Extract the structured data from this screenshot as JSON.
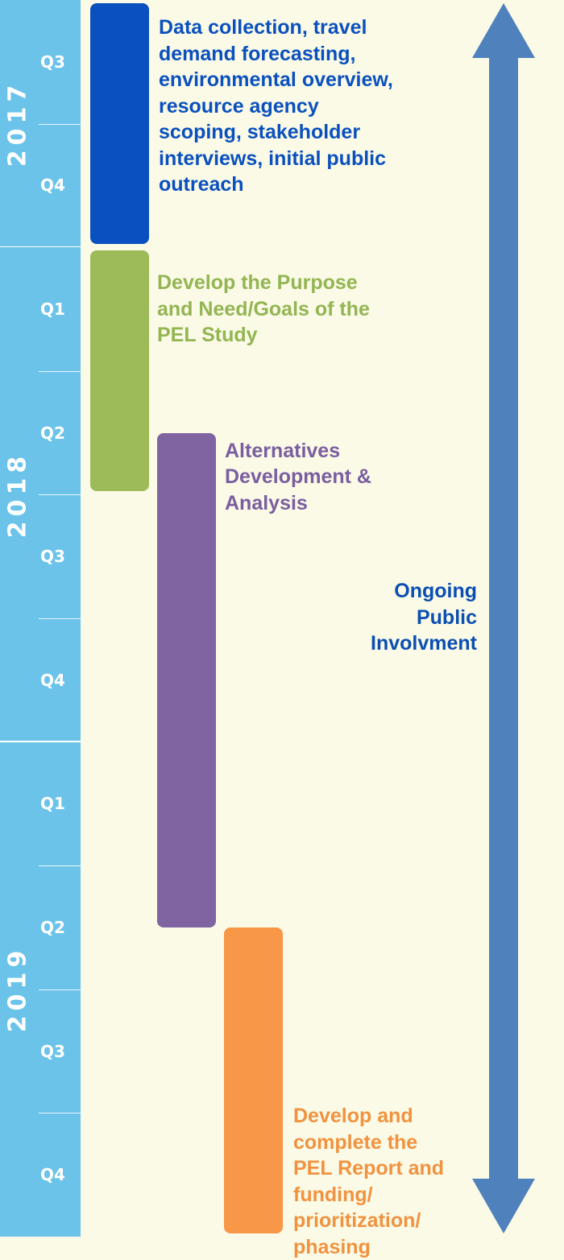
{
  "timeline": {
    "years": [
      {
        "label": "2017",
        "quarters": [
          "Q3",
          "Q4"
        ]
      },
      {
        "label": "2018",
        "quarters": [
          "Q1",
          "Q2",
          "Q3",
          "Q4"
        ]
      },
      {
        "label": "2019",
        "quarters": [
          "Q1",
          "Q2",
          "Q3",
          "Q4"
        ]
      }
    ],
    "phases": [
      {
        "id": "data-collection",
        "color": "#0a50be",
        "text_color": "#0a50be",
        "start": "2017 Q3",
        "end": "2017 Q4",
        "lines": [
          "Data collection, travel",
          "demand forecasting,",
          "environmental overview,",
          "resource agency",
          "scoping, stakeholder",
          "interviews, initial public",
          "outreach"
        ]
      },
      {
        "id": "purpose-need",
        "color": "#9dbb59",
        "text_color": "#93b552",
        "start": "2018 Q1",
        "end": "2018 Q2",
        "lines": [
          "Develop the Purpose",
          "and Need/Goals of the",
          "PEL Study"
        ]
      },
      {
        "id": "alternatives",
        "color": "#8064a2",
        "text_color": "#7a5ea0",
        "start": "2018 Q2",
        "end": "2019 Q2",
        "lines": [
          "Alternatives",
          "Development &",
          "Analysis"
        ]
      },
      {
        "id": "pel-report",
        "color": "#f79747",
        "text_color": "#f2923f",
        "start": "2019 Q2",
        "end": "2019 Q4",
        "lines": [
          "Develop and",
          "complete the",
          "PEL Report and",
          "funding/",
          "prioritization/",
          "phasing"
        ]
      }
    ],
    "ongoing": {
      "color": "#4f81bd",
      "text_color": "#0b4fb3",
      "lines": [
        "Ongoing",
        "Public",
        "Involvment"
      ]
    }
  }
}
